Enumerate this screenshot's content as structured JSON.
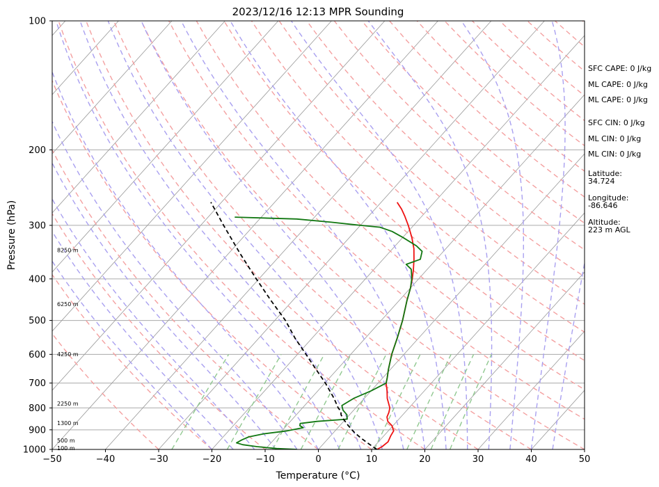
{
  "chart_data": {
    "type": "skew-t",
    "title": "2023/12/16 12:13 MPR Sounding",
    "xlabel": "Temperature (°C)",
    "ylabel": "Pressure (hPa)",
    "xlim": [
      -50,
      50
    ],
    "ylim": [
      1000,
      100
    ],
    "y_scale": "log",
    "grid": true,
    "x_ticks": [
      "−50",
      "−40",
      "−30",
      "−20",
      "−10",
      "0",
      "10",
      "20",
      "30",
      "40",
      "50"
    ],
    "y_ticks": [
      "100",
      "200",
      "300",
      "400",
      "500",
      "600",
      "700",
      "800",
      "900",
      "1000"
    ],
    "series": [
      {
        "role": "temperature",
        "color": "#ee1111",
        "points": [
          [
            1000,
            11.0
          ],
          [
            985,
            11.5
          ],
          [
            960,
            11.8
          ],
          [
            930,
            11.3
          ],
          [
            905,
            11.0
          ],
          [
            880,
            9.8
          ],
          [
            860,
            8.3
          ],
          [
            840,
            7.4
          ],
          [
            820,
            7.0
          ],
          [
            800,
            6.4
          ],
          [
            760,
            4.3
          ],
          [
            730,
            3.0
          ],
          [
            700,
            1.5
          ],
          [
            680,
            0.8
          ],
          [
            650,
            -0.4
          ],
          [
            600,
            -2.3
          ],
          [
            550,
            -4.0
          ],
          [
            500,
            -6.0
          ],
          [
            450,
            -8.5
          ],
          [
            420,
            -10.0
          ],
          [
            400,
            -11.2
          ],
          [
            380,
            -12.6
          ],
          [
            360,
            -14.2
          ],
          [
            340,
            -16.0
          ],
          [
            320,
            -18.3
          ],
          [
            300,
            -21.0
          ],
          [
            285,
            -23.3
          ],
          [
            275,
            -25.0
          ],
          [
            265,
            -27.0
          ]
        ]
      },
      {
        "role": "dewpoint",
        "color": "#117711",
        "points": [
          [
            1000,
            -4.0
          ],
          [
            995,
            -8.0
          ],
          [
            985,
            -12.0
          ],
          [
            975,
            -15.0
          ],
          [
            965,
            -16.5
          ],
          [
            950,
            -16.0
          ],
          [
            935,
            -15.2
          ],
          [
            920,
            -13.0
          ],
          [
            905,
            -9.0
          ],
          [
            890,
            -6.5
          ],
          [
            880,
            -7.5
          ],
          [
            870,
            -7.8
          ],
          [
            860,
            -5.0
          ],
          [
            850,
            0.3
          ],
          [
            830,
            -0.5
          ],
          [
            810,
            -2.0
          ],
          [
            790,
            -3.0
          ],
          [
            760,
            -2.0
          ],
          [
            730,
            0.0
          ],
          [
            710,
            1.0
          ],
          [
            700,
            1.5
          ],
          [
            680,
            0.8
          ],
          [
            650,
            -0.4
          ],
          [
            600,
            -2.3
          ],
          [
            550,
            -4.0
          ],
          [
            500,
            -6.0
          ],
          [
            450,
            -8.5
          ],
          [
            420,
            -10.0
          ],
          [
            400,
            -11.3
          ],
          [
            380,
            -13.0
          ],
          [
            370,
            -14.8
          ],
          [
            360,
            -13.0
          ],
          [
            345,
            -14.0
          ],
          [
            335,
            -16.0
          ],
          [
            320,
            -20.0
          ],
          [
            310,
            -23.0
          ],
          [
            303,
            -26.0
          ],
          [
            300,
            -30.0
          ],
          [
            295,
            -36.0
          ],
          [
            290,
            -43.0
          ],
          [
            287,
            -55.0
          ]
        ]
      },
      {
        "role": "parcel",
        "color": "#000000",
        "points": [
          [
            1000,
            11.0
          ],
          [
            970,
            8.5
          ],
          [
            940,
            6.0
          ],
          [
            910,
            3.7
          ],
          [
            880,
            1.6
          ],
          [
            850,
            -0.4
          ],
          [
            830,
            -1.6
          ],
          [
            815,
            -2.2
          ],
          [
            800,
            -3.3
          ],
          [
            760,
            -5.7
          ],
          [
            700,
            -9.9
          ],
          [
            650,
            -14.0
          ],
          [
            600,
            -18.4
          ],
          [
            550,
            -23.2
          ],
          [
            500,
            -28.0
          ],
          [
            450,
            -34.0
          ],
          [
            400,
            -40.5
          ],
          [
            350,
            -47.7
          ],
          [
            300,
            -55.7
          ],
          [
            265,
            -62.0
          ]
        ]
      }
    ],
    "height_labels": [
      {
        "text": "8250 m",
        "p": 343
      },
      {
        "text": "6250 m",
        "p": 458
      },
      {
        "text": "4250 m",
        "p": 599
      },
      {
        "text": "2250 m",
        "p": 782
      },
      {
        "text": "1300 m",
        "p": 867
      },
      {
        "text": "500 m",
        "p": 952
      },
      {
        "text": "100 m",
        "p": 993
      }
    ]
  },
  "side_panel": {
    "sfc_cape": "SFC CAPE: 0 J/kg",
    "ml_cape_1": "ML CAPE: 0 J/kg",
    "ml_cape_2": "ML CAPE: 0 J/kg",
    "sfc_cin": "SFC CIN: 0 J/kg",
    "ml_cin_1": "ML CIN: 0 J/kg",
    "ml_cin_2": "ML CIN: 0 J/kg",
    "latitude": "Latitude:\n34.724",
    "longitude": "Longitude:\n-86.646",
    "altitude": "Altitude:\n223 m AGL"
  },
  "colors": {
    "isotherm": "#999999",
    "dry_adiabat": "#f4a0a0",
    "moist_adiabat": "#a9a0f0",
    "mixing_ratio": "#90c890",
    "isobar": "#aaaaaa"
  }
}
